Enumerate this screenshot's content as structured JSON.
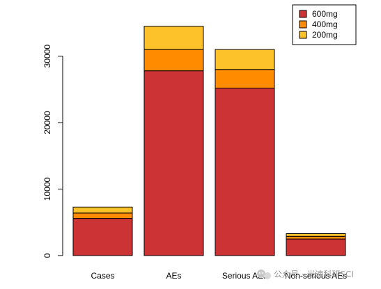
{
  "chart_data": {
    "type": "bar",
    "stacked": true,
    "title": "",
    "xlabel": "",
    "ylabel": "",
    "categories": [
      "Cases",
      "AEs",
      "Serious AEs",
      "Non-serious AEs"
    ],
    "series": [
      {
        "name": "600mg",
        "color": "#cb3335",
        "values": [
          5600,
          27800,
          25200,
          2500
        ]
      },
      {
        "name": "400mg",
        "color": "#ff8b00",
        "values": [
          800,
          3200,
          2800,
          400
        ]
      },
      {
        "name": "200mg",
        "color": "#fdc12a",
        "values": [
          900,
          3500,
          3000,
          400
        ]
      }
    ],
    "ylim": [
      0,
      35000
    ],
    "yticks": [
      0,
      10000,
      20000,
      30000
    ],
    "grid": false,
    "legend_position": "top-right"
  },
  "watermark": {
    "text": "公众号 · 光速科研SCI",
    "icon": "wechat-icon"
  }
}
